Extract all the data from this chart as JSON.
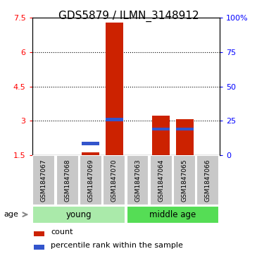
{
  "title": "GDS5879 / ILMN_3148912",
  "samples": [
    "GSM1847067",
    "GSM1847068",
    "GSM1847069",
    "GSM1847070",
    "GSM1847063",
    "GSM1847064",
    "GSM1847065",
    "GSM1847066"
  ],
  "count_values": [
    1.5,
    1.5,
    1.62,
    7.3,
    1.5,
    3.22,
    3.05,
    1.5
  ],
  "percentile_values": [
    null,
    null,
    2.0,
    3.05,
    null,
    2.62,
    2.62,
    null
  ],
  "ylim_left": [
    1.5,
    7.5
  ],
  "ylim_right": [
    0,
    100
  ],
  "yticks_left": [
    1.5,
    3.0,
    4.5,
    6.0,
    7.5
  ],
  "ytick_labels_left": [
    "1.5",
    "3",
    "4.5",
    "6",
    "7.5"
  ],
  "yticks_right": [
    0,
    25,
    50,
    75,
    100
  ],
  "ytick_labels_right": [
    "0",
    "25",
    "50",
    "75",
    "100%"
  ],
  "grid_values": [
    3.0,
    4.5,
    6.0
  ],
  "bar_color": "#CC2200",
  "percentile_color": "#3355CC",
  "bar_width": 0.75,
  "sample_bg": "#C8C8C8",
  "young_color": "#AAEAAA",
  "middle_age_color": "#55DD55",
  "legend_count": "count",
  "legend_percentile": "percentile rank within the sample",
  "age_label": "age",
  "title_fontsize": 11,
  "tick_fontsize": 8,
  "legend_fontsize": 8,
  "sample_fontsize": 6.5,
  "group_fontsize": 8.5,
  "groups_info": [
    [
      0,
      3,
      "young"
    ],
    [
      4,
      7,
      "middle age"
    ]
  ]
}
